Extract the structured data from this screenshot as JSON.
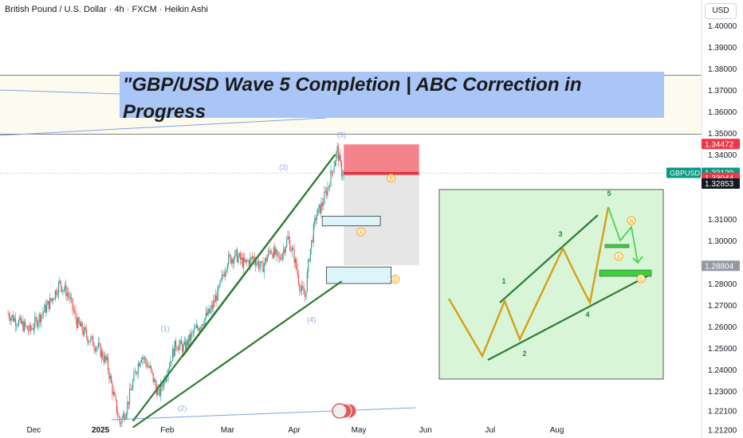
{
  "header": {
    "symbol_line": "British Pound / U.S. Dollar · 4h · FXCM · Heikin Ashi",
    "currency_button": "USD"
  },
  "banner": {
    "title": "\"GBP/USD Wave 5 Completion | ABC Correction in Progress"
  },
  "colors": {
    "bull": "#26a69a",
    "bear": "#ef5350",
    "trend": "#2e7d32",
    "wave_label": "#8fa9d8",
    "abc_label": "#f5a623",
    "zig": "#d4a017",
    "green_path": "#3dd13d",
    "panel_bg": "#d8f5d8"
  },
  "chart_data": {
    "type": "candlestick",
    "ylim": [
      1.205,
      1.415
    ],
    "y_ticks": [
      "1.40000",
      "1.39000",
      "1.38000",
      "1.37000",
      "1.36000",
      "1.35000",
      "1.34000",
      "1.31000",
      "1.30000",
      "1.28000",
      "1.27000",
      "1.26000",
      "1.25000",
      "1.24000",
      "1.23000",
      "1.22100",
      "1.21200"
    ],
    "y_tick_values": [
      1.4,
      1.39,
      1.38,
      1.37,
      1.36,
      1.35,
      1.34,
      1.31,
      1.3,
      1.28,
      1.27,
      1.26,
      1.25,
      1.24,
      1.23,
      1.221,
      1.212
    ],
    "x_ticks": [
      "Dec",
      "2025",
      "Feb",
      "Mar",
      "Apr",
      "May",
      "Jun",
      "Jul",
      "Aug"
    ],
    "x_tick_days": [
      2,
      33,
      64,
      92,
      123,
      153,
      184,
      214,
      245
    ],
    "price_tags": [
      {
        "label": "",
        "value": "1.34472",
        "price": 1.34472,
        "color": "#f23645"
      },
      {
        "label": "GBPUSD",
        "value": "1.33129",
        "price": 1.33129,
        "color": "#089981"
      },
      {
        "label": "",
        "value": "1.33044",
        "price": 1.33044,
        "color": "#f23645"
      },
      {
        "label": "",
        "value": "1.32853",
        "price": 1.32853,
        "color": "#131722"
      },
      {
        "label": "",
        "value": "1.28804",
        "price": 1.28804,
        "color": "#9598a1"
      }
    ],
    "price_path": [
      {
        "day": -10,
        "price": 1.266
      },
      {
        "day": -5,
        "price": 1.262
      },
      {
        "day": 0,
        "price": 1.258
      },
      {
        "day": 5,
        "price": 1.265
      },
      {
        "day": 10,
        "price": 1.272
      },
      {
        "day": 14,
        "price": 1.28
      },
      {
        "day": 18,
        "price": 1.275
      },
      {
        "day": 22,
        "price": 1.262
      },
      {
        "day": 27,
        "price": 1.255
      },
      {
        "day": 32,
        "price": 1.25
      },
      {
        "day": 36,
        "price": 1.243
      },
      {
        "day": 39,
        "price": 1.228
      },
      {
        "day": 42,
        "price": 1.215
      },
      {
        "day": 45,
        "price": 1.222
      },
      {
        "day": 49,
        "price": 1.238
      },
      {
        "day": 52,
        "price": 1.247
      },
      {
        "day": 56,
        "price": 1.24
      },
      {
        "day": 60,
        "price": 1.228
      },
      {
        "day": 64,
        "price": 1.24
      },
      {
        "day": 68,
        "price": 1.252
      },
      {
        "day": 72,
        "price": 1.25
      },
      {
        "day": 76,
        "price": 1.257
      },
      {
        "day": 80,
        "price": 1.262
      },
      {
        "day": 84,
        "price": 1.267
      },
      {
        "day": 88,
        "price": 1.277
      },
      {
        "day": 92,
        "price": 1.291
      },
      {
        "day": 96,
        "price": 1.293
      },
      {
        "day": 100,
        "price": 1.289
      },
      {
        "day": 104,
        "price": 1.292
      },
      {
        "day": 108,
        "price": 1.287
      },
      {
        "day": 112,
        "price": 1.296
      },
      {
        "day": 116,
        "price": 1.291
      },
      {
        "day": 120,
        "price": 1.301
      },
      {
        "day": 123,
        "price": 1.292
      },
      {
        "day": 126,
        "price": 1.277
      },
      {
        "day": 128,
        "price": 1.274
      },
      {
        "day": 130,
        "price": 1.293
      },
      {
        "day": 133,
        "price": 1.311
      },
      {
        "day": 136,
        "price": 1.317
      },
      {
        "day": 139,
        "price": 1.326
      },
      {
        "day": 141,
        "price": 1.334
      },
      {
        "day": 143,
        "price": 1.342
      },
      {
        "day": 145,
        "price": 1.332
      },
      {
        "day": 147,
        "price": 1.331
      }
    ],
    "trend_lines": [
      {
        "d1": 48,
        "p1": 1.216,
        "d2": 142,
        "p2": 1.34
      },
      {
        "d1": 71,
        "p1": 1.246,
        "d2": 142,
        "p2": 1.34
      },
      {
        "d1": 48,
        "p1": 1.213,
        "d2": 145,
        "p2": 1.281
      }
    ],
    "wave_labels": [
      {
        "text": "(1)",
        "day": 63,
        "price": 1.258
      },
      {
        "text": "(2)",
        "day": 71,
        "price": 1.221
      },
      {
        "text": "(3)",
        "day": 118,
        "price": 1.333
      },
      {
        "text": "(4)",
        "day": 131,
        "price": 1.262
      },
      {
        "text": "(5)",
        "day": 145,
        "price": 1.348
      }
    ],
    "abc_labels": [
      {
        "text": "A",
        "day": 154,
        "price": 1.304
      },
      {
        "text": "B",
        "day": 168,
        "price": 1.329
      },
      {
        "text": "C",
        "day": 170,
        "price": 1.282
      }
    ],
    "zones": [
      {
        "kind": "stop",
        "d1": 146,
        "d2": 181,
        "p1": 1.3447,
        "p2": 1.3319
      },
      {
        "kind": "stop-line",
        "d1": 146,
        "d2": 181,
        "p1": 1.3319,
        "p2": 1.3305
      },
      {
        "kind": "target",
        "d1": 146,
        "d2": 181,
        "p1": 1.3305,
        "p2": 1.2885
      },
      {
        "kind": "box-a",
        "d1": 136,
        "d2": 163,
        "p1": 1.3113,
        "p2": 1.3068
      },
      {
        "kind": "box-c",
        "d1": 138,
        "d2": 168,
        "p1": 1.2877,
        "p2": 1.28
      }
    ],
    "resistance_band": {
      "p1": 1.3768,
      "p2": 1.3495
    },
    "schematic": {
      "wave_labels": [
        "1",
        "2",
        "3",
        "4",
        "5"
      ],
      "abc_labels": [
        "A",
        "B",
        "C"
      ]
    }
  }
}
